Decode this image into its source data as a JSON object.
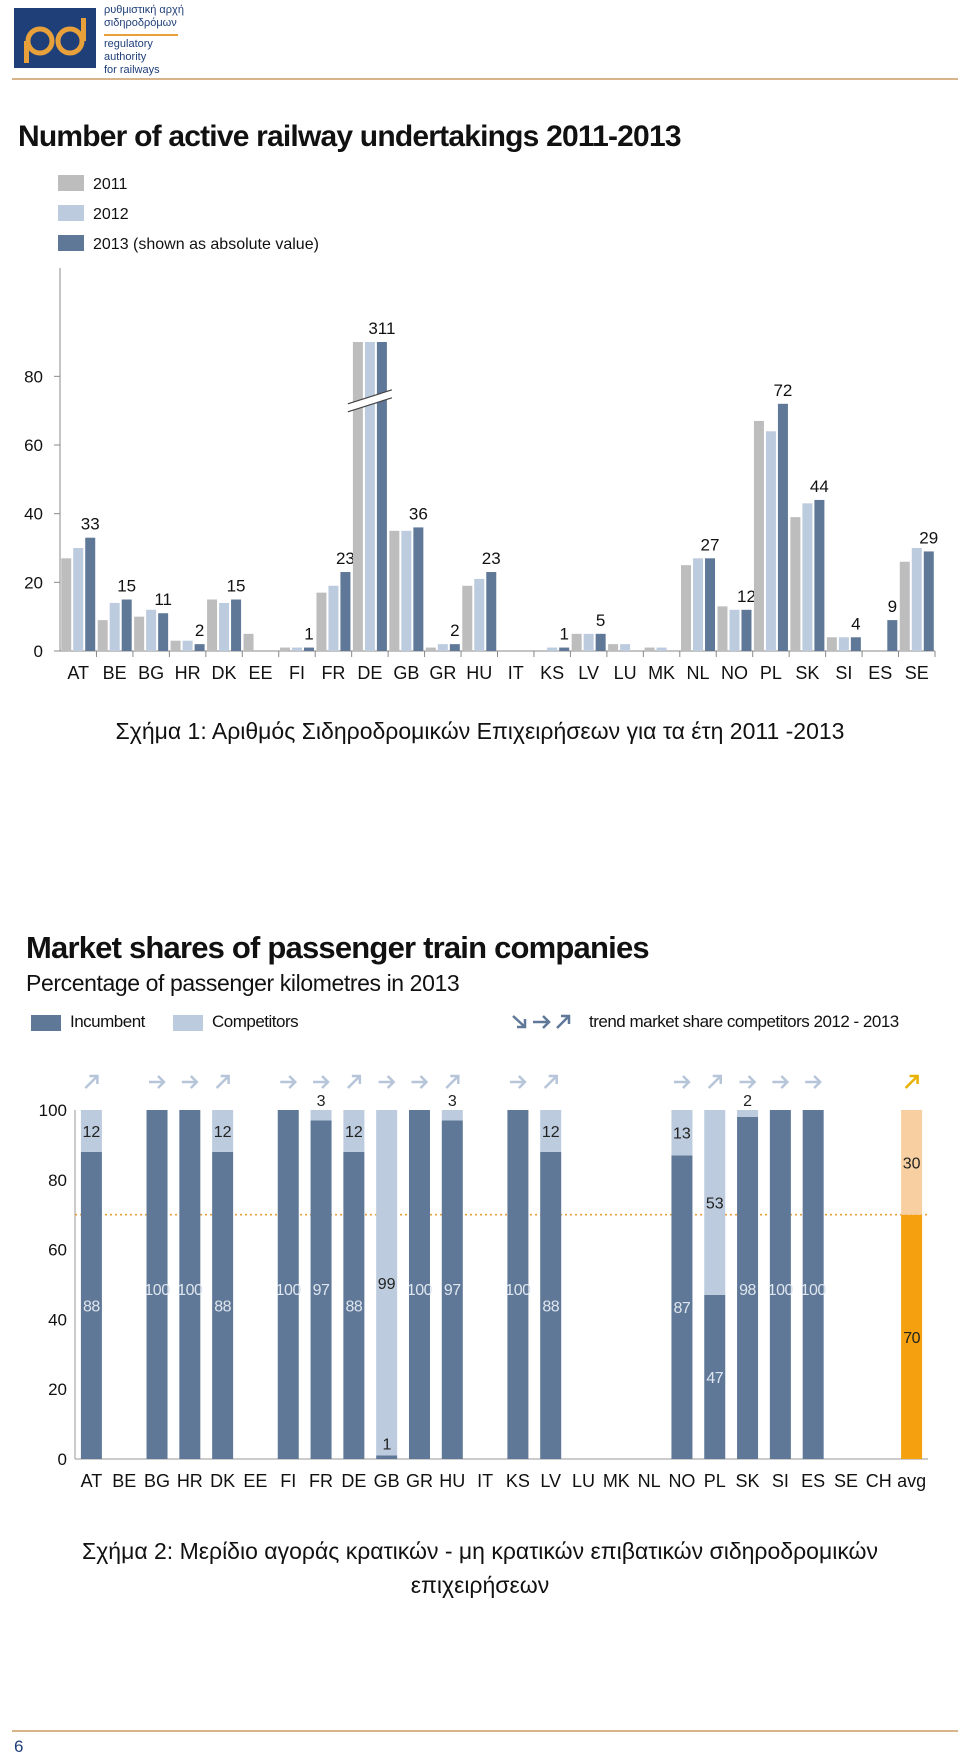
{
  "header": {
    "logo_lines": [
      "ρυθμιστική αρχή",
      "σιδηροδρόμων",
      "regulatory",
      "authority",
      "for railways"
    ],
    "logo_mark": "ραδ"
  },
  "chart1_title": "Number of active railway undertakings 2011-2013",
  "caption1": "Σχήμα 1: Αριθμός Σιδηροδρομικών Επιχειρήσεων για τα έτη 2011 -2013",
  "chart2_title": "Market shares of passenger train companies",
  "chart2_subtitle": "Percentage of passenger kilometres in 2013",
  "chart2_legend": {
    "incumbent": "Incumbent",
    "competitors": "Competitors",
    "trend": "trend market share competitors 2012 - 2013"
  },
  "caption2_line1": "Σχήμα 2: Μερίδιο αγοράς κρατικών - μη κρατικών επιβατικών σιδηροδρομικών",
  "caption2_line2": "επιχειρήσεων",
  "page_number": "6",
  "colors": {
    "y2011": "#bdbdbd",
    "y2012": "#bccbde",
    "y2013": "#5f7898",
    "incumbent": "#5f7898",
    "competitors": "#bccbde",
    "avg_incumbent": "#f5a00e",
    "avg_competitors": "#f7cfa0",
    "trend_arrow": "#b7c5d9",
    "trend_arrow_avg": "#e8b100",
    "dotted_line": "#e8a13a",
    "rule": "#d8b48a"
  },
  "chart_data": [
    {
      "type": "bar",
      "title": "Number of active railway undertakings 2011-2013",
      "categories": [
        "AT",
        "BE",
        "BG",
        "HR",
        "DK",
        "EE",
        "FI",
        "FR",
        "DE",
        "GB",
        "GR",
        "HU",
        "IT",
        "KS",
        "LV",
        "LU",
        "MK",
        "NL",
        "NO",
        "PL",
        "SK",
        "SI",
        "ES",
        "SE"
      ],
      "series": [
        {
          "name": "2011",
          "values": [
            27,
            9,
            10,
            3,
            15,
            5,
            1,
            17,
            null,
            35,
            1,
            19,
            null,
            0,
            5,
            2,
            1,
            25,
            13,
            67,
            39,
            4,
            null,
            26
          ]
        },
        {
          "name": "2012",
          "values": [
            30,
            14,
            12,
            3,
            14,
            0,
            1,
            19,
            null,
            35,
            2,
            21,
            null,
            1,
            5,
            2,
            1,
            27,
            12,
            64,
            43,
            4,
            null,
            30
          ]
        },
        {
          "name": "2013 (shown as absolute value)",
          "values": [
            33,
            15,
            11,
            2,
            15,
            null,
            1,
            23,
            311,
            36,
            2,
            23,
            null,
            1,
            5,
            null,
            null,
            27,
            12,
            72,
            44,
            4,
            9,
            29
          ]
        }
      ],
      "data_labels": {
        "AT": "33",
        "BE": "15",
        "BG": "11",
        "HR": "2",
        "DK": "15",
        "FI": "1",
        "FR": "23",
        "DE": "311",
        "GB": "36",
        "GR": "2",
        "HU": "23",
        "KS": "1",
        "LV": "5",
        "NL": "27",
        "NO": "12",
        "PL": "72",
        "SK": "44",
        "SI": "4",
        "ES": "9",
        "SE": "29"
      },
      "axis_break": "DE",
      "yticks": [
        0,
        20,
        40,
        60,
        80
      ],
      "ylim": [
        0,
        90
      ],
      "legend": "top-left"
    },
    {
      "type": "bar",
      "stacked": true,
      "title": "Market shares of passenger train companies",
      "subtitle": "Percentage of passenger kilometres in 2013",
      "categories": [
        "AT",
        "BE",
        "BG",
        "HR",
        "DK",
        "EE",
        "FI",
        "FR",
        "DE",
        "GB",
        "GR",
        "HU",
        "IT",
        "KS",
        "LV",
        "LU",
        "MK",
        "NL",
        "NO",
        "PL",
        "SK",
        "SI",
        "ES",
        "SE",
        "CH",
        "avg"
      ],
      "series": [
        {
          "name": "Incumbent",
          "values": [
            88,
            null,
            100,
            100,
            88,
            null,
            100,
            97,
            88,
            1,
            100,
            97,
            null,
            100,
            88,
            null,
            null,
            null,
            87,
            47,
            98,
            100,
            100,
            null,
            null,
            70
          ]
        },
        {
          "name": "Competitors",
          "values": [
            12,
            null,
            0,
            0,
            12,
            null,
            0,
            3,
            12,
            99,
            0,
            3,
            null,
            0,
            12,
            null,
            null,
            null,
            13,
            53,
            2,
            0,
            0,
            null,
            null,
            30
          ]
        }
      ],
      "incumbent_labels": [
        "88",
        "",
        "100",
        "100",
        "88",
        "",
        "100",
        "97",
        "88",
        "1",
        "100",
        "97",
        "",
        "100",
        "88",
        "",
        "",
        "",
        "87",
        "47",
        "98",
        "100",
        "100",
        "",
        "",
        "70"
      ],
      "competitor_labels": [
        "12",
        "",
        "",
        "",
        "12",
        "",
        "",
        "3",
        "12",
        "99",
        "",
        "3",
        "",
        "",
        "12",
        "",
        "",
        "",
        "13",
        "53",
        "2",
        "",
        "",
        "",
        "",
        "30"
      ],
      "trend": [
        "up",
        "",
        "right",
        "right",
        "up",
        "",
        "right",
        "right",
        "up",
        "right",
        "right",
        "up",
        "",
        "right",
        "up",
        "",
        "",
        "",
        "right",
        "up",
        "right",
        "right",
        "right",
        "",
        "",
        "up"
      ],
      "reference_line": 70,
      "yticks": [
        0,
        20,
        40,
        60,
        80,
        100
      ],
      "ylim": [
        0,
        100
      ],
      "legend": "top"
    }
  ]
}
